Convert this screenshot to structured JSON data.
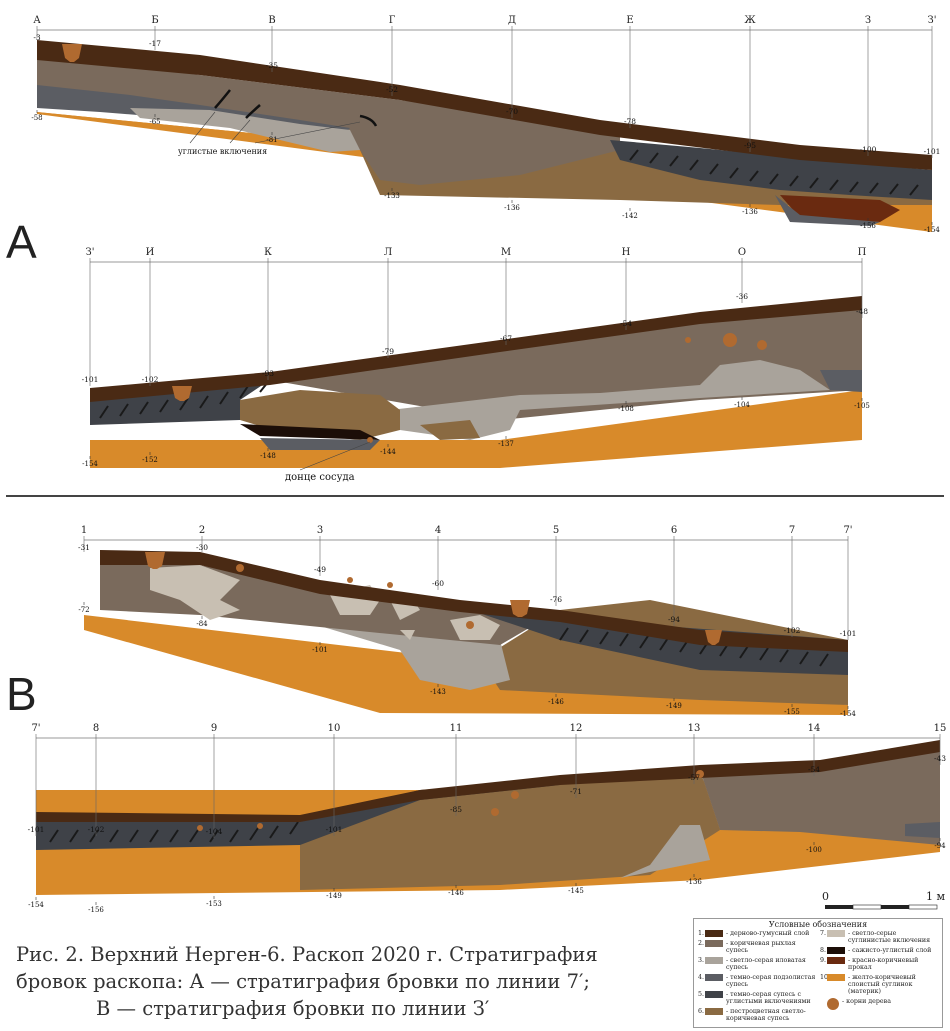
{
  "panel_letters": [
    "А",
    "В"
  ],
  "section_a1": {
    "stations": [
      "А",
      "Б",
      "В",
      "Г",
      "Д",
      "Е",
      "Ж",
      "З",
      "З'"
    ],
    "top_depths": [
      "-3",
      "-17",
      "-35",
      "-52",
      "-70",
      "-78",
      "-95",
      "-100",
      "-101"
    ],
    "bottom_depths": [
      "-58",
      "-65",
      "-81",
      "-133",
      "-136",
      "-142",
      "-136",
      "-156",
      "-154"
    ],
    "annotation": "углистые включения"
  },
  "section_a2": {
    "stations": [
      "З'",
      "И",
      "К",
      "Л",
      "М",
      "Н",
      "О",
      "П"
    ],
    "top_depths": [
      "-101",
      "-102",
      "-93",
      "-79",
      "-67",
      "-54",
      "-36",
      "-48"
    ],
    "bottom_depths": [
      "-154",
      "-152",
      "-148",
      "-144",
      "-137",
      "-108",
      "-104",
      "-105"
    ],
    "annotation": "донце сосуда"
  },
  "section_b1": {
    "stations": [
      "1",
      "2",
      "3",
      "4",
      "5",
      "6",
      "7",
      "7'"
    ],
    "top_depths": [
      "-31",
      "-30",
      "-49",
      "-60",
      "-76",
      "-94",
      "-102",
      "-101"
    ],
    "bottom_depths": [
      "-72",
      "-84",
      "-101",
      "-143",
      "-146",
      "-149",
      "-155",
      "-154"
    ]
  },
  "section_b2": {
    "stations": [
      "7'",
      "8",
      "9",
      "10",
      "11",
      "12",
      "13",
      "14",
      "15"
    ],
    "top_depths": [
      "-101",
      "-102",
      "-104",
      "-101",
      "-85",
      "-71",
      "-57",
      "-54",
      "-43"
    ],
    "bottom_depths": [
      "-154",
      "-156",
      "-153",
      "-149",
      "-146",
      "-145",
      "-136",
      "-100",
      "-94"
    ]
  },
  "scale": {
    "start": "0",
    "end": "1 м"
  },
  "caption": {
    "line1": "Рис. 2. Верхний Нерген-6. Раскоп 2020 г. Стратиграфия",
    "line2": "бровок раскопа: А — стратиграфия бровки по линии 7′;",
    "line3": "В — стратиграфия бровки по линии З′"
  },
  "legend": {
    "title": "Условные обозначения",
    "left": [
      {
        "n": "1.",
        "label": "- дерново-гумусный слой",
        "color": "#4a2a14"
      },
      {
        "n": "2.",
        "label": "- коричневая рыхлая супесь",
        "color": "#7a6a5c"
      },
      {
        "n": "3.",
        "label": "- светло-серая иловатая супесь",
        "color": "#a9a39b"
      },
      {
        "n": "4.",
        "label": "- темно-серая подзолистая супесь",
        "color": "#5b5d63"
      },
      {
        "n": "5.",
        "label": "- темно-серая супесь с углистыми включениями",
        "color": "#3f4248"
      },
      {
        "n": "6.",
        "label": "- пестроцветная светло-коричневая супесь",
        "color": "#8a6a42"
      }
    ],
    "right": [
      {
        "n": "7.",
        "label": "- светло-серые суглинистые включения",
        "color": "#c8bfb2"
      },
      {
        "n": "8.",
        "label": "- сажисто-углистый слой",
        "color": "#1c0e08"
      },
      {
        "n": "9.",
        "label": "- красно-коричневый прокал",
        "color": "#6a2a10"
      },
      {
        "n": "10.",
        "label": "- желто-коричневый слоистый суглинок (материк)",
        "color": "#d88a2a"
      },
      {
        "n": "",
        "label": "- корни дерева",
        "color": "#b06a30"
      }
    ]
  },
  "colors": {
    "humus": "#4a2a14",
    "brown": "#7a6a5c",
    "light_gray": "#a9a39b",
    "dark_gray": "#5b5d63",
    "charcoal_sand": "#3f4248",
    "mottled": "#8a6a42",
    "light_incl": "#c8bfb2",
    "soot": "#1c0e08",
    "burnt": "#6a2a10",
    "bedrock": "#d88a2a",
    "root": "#b06a30"
  }
}
